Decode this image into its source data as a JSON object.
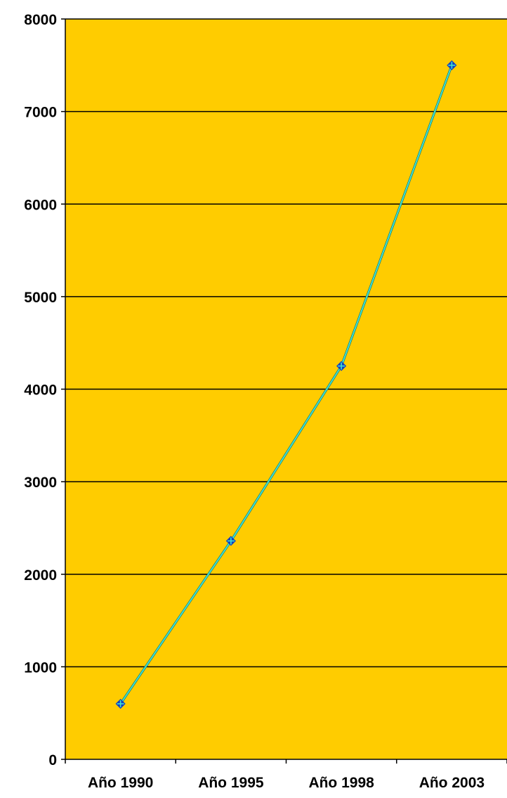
{
  "chart_data": {
    "type": "line",
    "categories": [
      "Año 1990",
      "Año 1995",
      "Año 1998",
      "Año 2003"
    ],
    "series": [
      {
        "values": [
          600,
          2360,
          4250,
          7500
        ]
      }
    ],
    "ylim": [
      0,
      8000
    ],
    "yticks": [
      "0",
      "1000",
      "2000",
      "3000",
      "4000",
      "5000",
      "6000",
      "7000",
      "8000"
    ],
    "grid": true,
    "legend": "none",
    "colors": {
      "plot_background": "#FFCC00",
      "line": "#40E0D0",
      "marker": "#1040C0",
      "gridline": "#000000"
    }
  }
}
